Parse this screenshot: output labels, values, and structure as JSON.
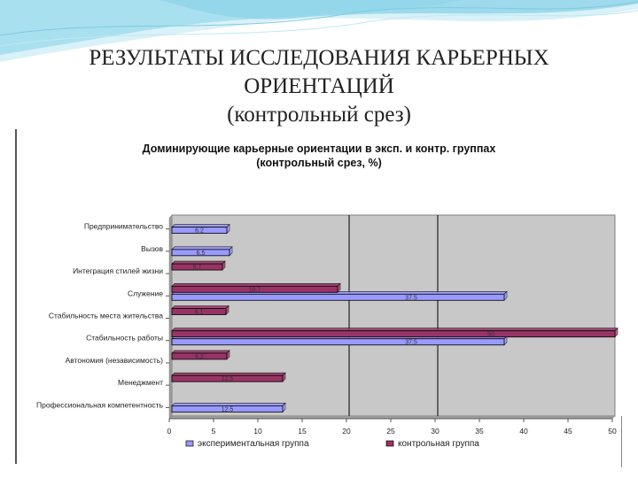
{
  "slide": {
    "title_line1": "РЕЗУЛЬТАТЫ ИССЛЕДОВАНИЯ КАРЬЕРНЫХ",
    "title_line2": "ОРИЕНТАЦИЙ",
    "title_line3": "(контрольный срез)"
  },
  "colors": {
    "plot_bg": "#c8c8c8",
    "experimental": "#9999ff",
    "control": "#993366",
    "wave": "#8fd3e8"
  },
  "chart_data": {
    "type": "bar",
    "orientation": "horizontal",
    "title_line1": "Доминирующие карьерные ориентации в эксп. и контр. группах",
    "title_line2": "(контрольный срез, %)",
    "categories": [
      "Предпринимательство",
      "Вызов",
      "Интеграция стилей жизни",
      "Служение",
      "Стабильность места жительства",
      "Стабильность работы",
      "Автономия (независимость)",
      "Менеджмент",
      "Профессиональная компетентность"
    ],
    "series": [
      {
        "name": "экспериментальная группа",
        "values": [
          6.2,
          6.5,
          null,
          37.5,
          null,
          37.5,
          null,
          null,
          12.5
        ]
      },
      {
        "name": "контрольная группа",
        "values": [
          null,
          null,
          5.7,
          18.7,
          6.1,
          50,
          6.2,
          12.5,
          null
        ]
      }
    ],
    "value_labels": {
      "экспериментальная группа": [
        "6.2",
        "6.5",
        "",
        "37.5",
        "",
        "37.5",
        "",
        "",
        "12.5"
      ],
      "контрольная группа": [
        "",
        "",
        "5.7",
        "18.7",
        "6.1",
        "50",
        "6.2",
        "12.5",
        ""
      ]
    },
    "xlim": [
      0,
      50
    ],
    "xticks": [
      "0",
      "5",
      "10",
      "15",
      "20",
      "25",
      "30",
      "35",
      "40",
      "45",
      "50"
    ],
    "grid": "vertical lines at 20 and 30",
    "legend_position": "bottom"
  }
}
